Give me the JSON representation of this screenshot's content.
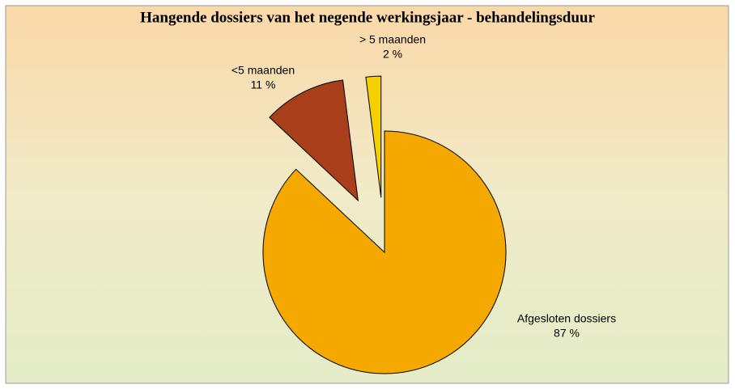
{
  "chart_data": {
    "type": "pie",
    "title": "Hangende dossiers van het negende werkingsjaar - behandelingsduur",
    "categories": [
      "Afgesloten dossiers",
      "<5 maanden",
      "> 5 maanden"
    ],
    "values": [
      87,
      11,
      2
    ],
    "value_labels": [
      "87 %",
      "11 %",
      "2 %"
    ],
    "colors": [
      "#f5a800",
      "#a83f1a",
      "#f5d000"
    ]
  }
}
